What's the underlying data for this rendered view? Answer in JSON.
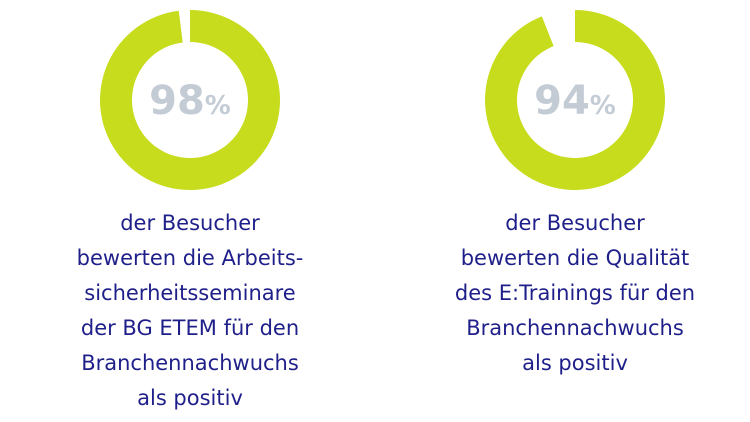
{
  "chart_data": [
    {
      "type": "donut",
      "values": [
        98
      ],
      "value_labels": [
        "98%"
      ],
      "color": "#c6dc1c",
      "description": [
        "der Besucher",
        "bewerten die Arbeits-",
        "sicherheitsseminare",
        "der BG ETEM für den",
        "Branchennachwuchs",
        "als positiv"
      ]
    },
    {
      "type": "donut",
      "values": [
        94
      ],
      "value_labels": [
        "94%"
      ],
      "color": "#c6dc1c",
      "description": [
        "der Besucher",
        "bewerten die Qualität",
        "des E:Trainings für den",
        "Branchennachwuchs",
        "als positiv"
      ]
    }
  ]
}
